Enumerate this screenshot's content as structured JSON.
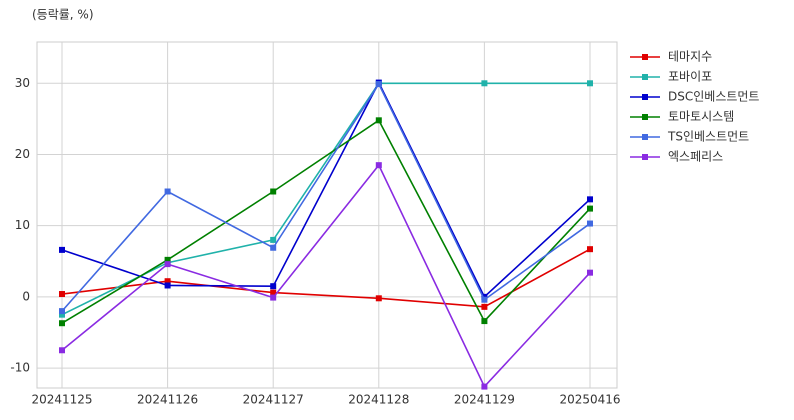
{
  "chart_data": {
    "type": "line",
    "y_label": "(등락률, %)",
    "categories": [
      "20241125",
      "20241126",
      "20241127",
      "20241128",
      "20241129",
      "20250416"
    ],
    "series": [
      {
        "name": "테마지수",
        "color": "#e00000",
        "values": [
          0.4,
          2.2,
          0.6,
          -0.2,
          -1.4,
          6.7
        ]
      },
      {
        "name": "포바이포",
        "color": "#20b2aa",
        "values": [
          -2.5,
          4.8,
          8.0,
          30.0,
          30.0,
          30.0
        ]
      },
      {
        "name": "DSC인베스트먼트",
        "color": "#0000cd",
        "values": [
          6.6,
          1.6,
          1.5,
          30.1,
          0.0,
          13.7
        ]
      },
      {
        "name": "토마토시스템",
        "color": "#008000",
        "values": [
          -3.7,
          5.2,
          14.8,
          24.8,
          -3.4,
          12.4
        ]
      },
      {
        "name": "TS인베스트먼트",
        "color": "#4169e1",
        "values": [
          -2.0,
          14.8,
          6.9,
          29.9,
          -0.4,
          10.3
        ]
      },
      {
        "name": "엑스페리스",
        "color": "#8a2be2",
        "values": [
          -7.5,
          4.6,
          -0.1,
          18.5,
          -12.6,
          3.4
        ]
      }
    ],
    "ylim": [
      -12.8,
      35.8
    ],
    "yticks": [
      -10,
      0,
      10,
      20,
      30
    ],
    "grid": true,
    "legend": "outside-right"
  }
}
